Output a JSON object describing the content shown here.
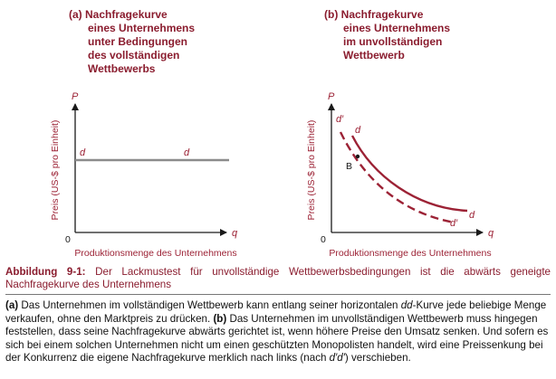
{
  "panel_a": {
    "title_lines": [
      "(a) Nachfragekurve",
      "eines Unternehmens",
      "unter Bedingungen",
      "des vollständigen",
      "Wettbewerbs"
    ],
    "y_axis_letter": "P",
    "y_axis_label": "Preis (US-$ pro Einheit)",
    "x_axis_letter": "q",
    "origin_label": "0",
    "x_axis_label": "Produktionsmenge des Unternehmens",
    "curve_label_left": "d",
    "curve_label_right": "d"
  },
  "panel_b": {
    "title_lines": [
      "(b) Nachfragekurve",
      "eines Unternehmens",
      "im unvollständigen",
      "Wettbewerb"
    ],
    "y_axis_letter": "P",
    "y_axis_label": "Preis (US-$ pro Einheit)",
    "x_axis_letter": "q",
    "origin_label": "0",
    "x_axis_label": "Produktionsmenge des Unternehmens",
    "dd_label_top": "d",
    "dd_label_bottom": "d",
    "dprime_label_top": "d′",
    "dprime_label_bottom": "d′",
    "point_label": "B"
  },
  "caption": {
    "figure_number": "Abbildung 9-1:",
    "text": "Der Lackmustest für unvollständige Wettbewerbsbedingungen ist die abwärts geneigte Nachfragekurve des Unternehmens"
  },
  "description": {
    "a_marker": "(a)",
    "a_text_1": " Das Unternehmen im vollständigen Wettbewerb kann entlang seiner horizontalen ",
    "a_term": "dd",
    "a_text_2": "-Kurve jede beliebige Menge verkaufen, ohne den Marktpreis zu drücken. ",
    "b_marker": "(b)",
    "b_text_1": " Das Unternehmen im unvollständigen Wettbewerb muss hingegen feststellen, dass seine Nachfragekurve abwärts gerichtet ist, wenn höhere Preise den Umsatz senken. Und sofern es sich bei einem solchen Unternehmen nicht um einen geschützten Monopolisten handelt, wird eine Preissenkung bei der Konkurrenz die eigene Nachfragekurve merklich nach links (nach ",
    "b_term": "d′d′",
    "b_text_2": ") verschieben."
  },
  "colors": {
    "title_red": "#8a1c2e",
    "curve_red": "#9c2235",
    "flat_curve_gray": "#8c8c8c",
    "axis_black": "#1a1a1a"
  }
}
